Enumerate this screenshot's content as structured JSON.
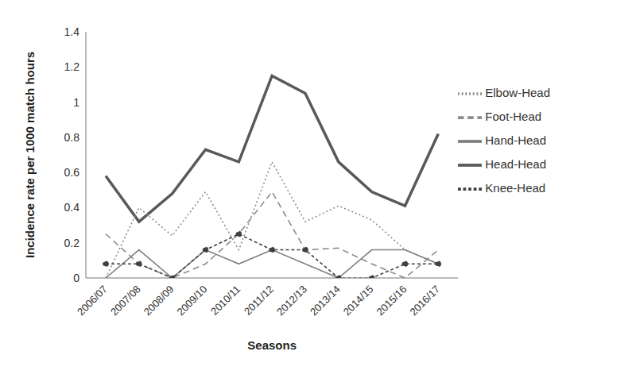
{
  "chart_data": {
    "type": "line",
    "x_label": "Seasons",
    "y_label": "Incidence rate per 1000 match hours",
    "categories": [
      "2006/07",
      "2007/08",
      "2008/09",
      "2009/10",
      "2010/11",
      "2011/12",
      "2012/13",
      "2013/14",
      "2014/15",
      "2015/16",
      "2016/17"
    ],
    "series": [
      {
        "name": "Head-Head",
        "color": "#595959",
        "line_style": "solid",
        "values": [
          0.58,
          0.32,
          0.48,
          0.73,
          0.66,
          1.15,
          1.05,
          0.66,
          0.49,
          0.41,
          0.82
        ]
      },
      {
        "name": "Elbow-Head",
        "color": "#8c8c8c",
        "line_style": "dotted",
        "values": [
          0.0,
          0.4,
          0.24,
          0.49,
          0.16,
          0.66,
          0.32,
          0.41,
          0.33,
          0.16,
          0.08
        ]
      },
      {
        "name": "Foot-Head",
        "color": "#8c8c8c",
        "line_style": "dashed",
        "values": [
          0.25,
          0.08,
          0.0,
          0.08,
          0.25,
          0.49,
          0.16,
          0.17,
          0.08,
          0.0,
          0.16
        ]
      },
      {
        "name": "Hand-Head",
        "color": "#7f7f7f",
        "line_style": "solid",
        "values": [
          0.0,
          0.16,
          0.0,
          0.16,
          0.08,
          0.16,
          0.08,
          0.0,
          0.16,
          0.16,
          0.08
        ]
      },
      {
        "name": "Knee-Head",
        "color": "#404040",
        "line_style": "dashed",
        "marker": "circle",
        "values": [
          0.08,
          0.08,
          0.0,
          0.16,
          0.25,
          0.16,
          0.16,
          0.0,
          0.0,
          0.08,
          0.08
        ]
      }
    ],
    "ylim": [
      0,
      1.4
    ],
    "yticks": [
      0,
      0.2,
      0.4,
      0.6,
      0.8,
      1,
      1.2,
      1.4
    ],
    "grid": false,
    "legend": "right"
  }
}
